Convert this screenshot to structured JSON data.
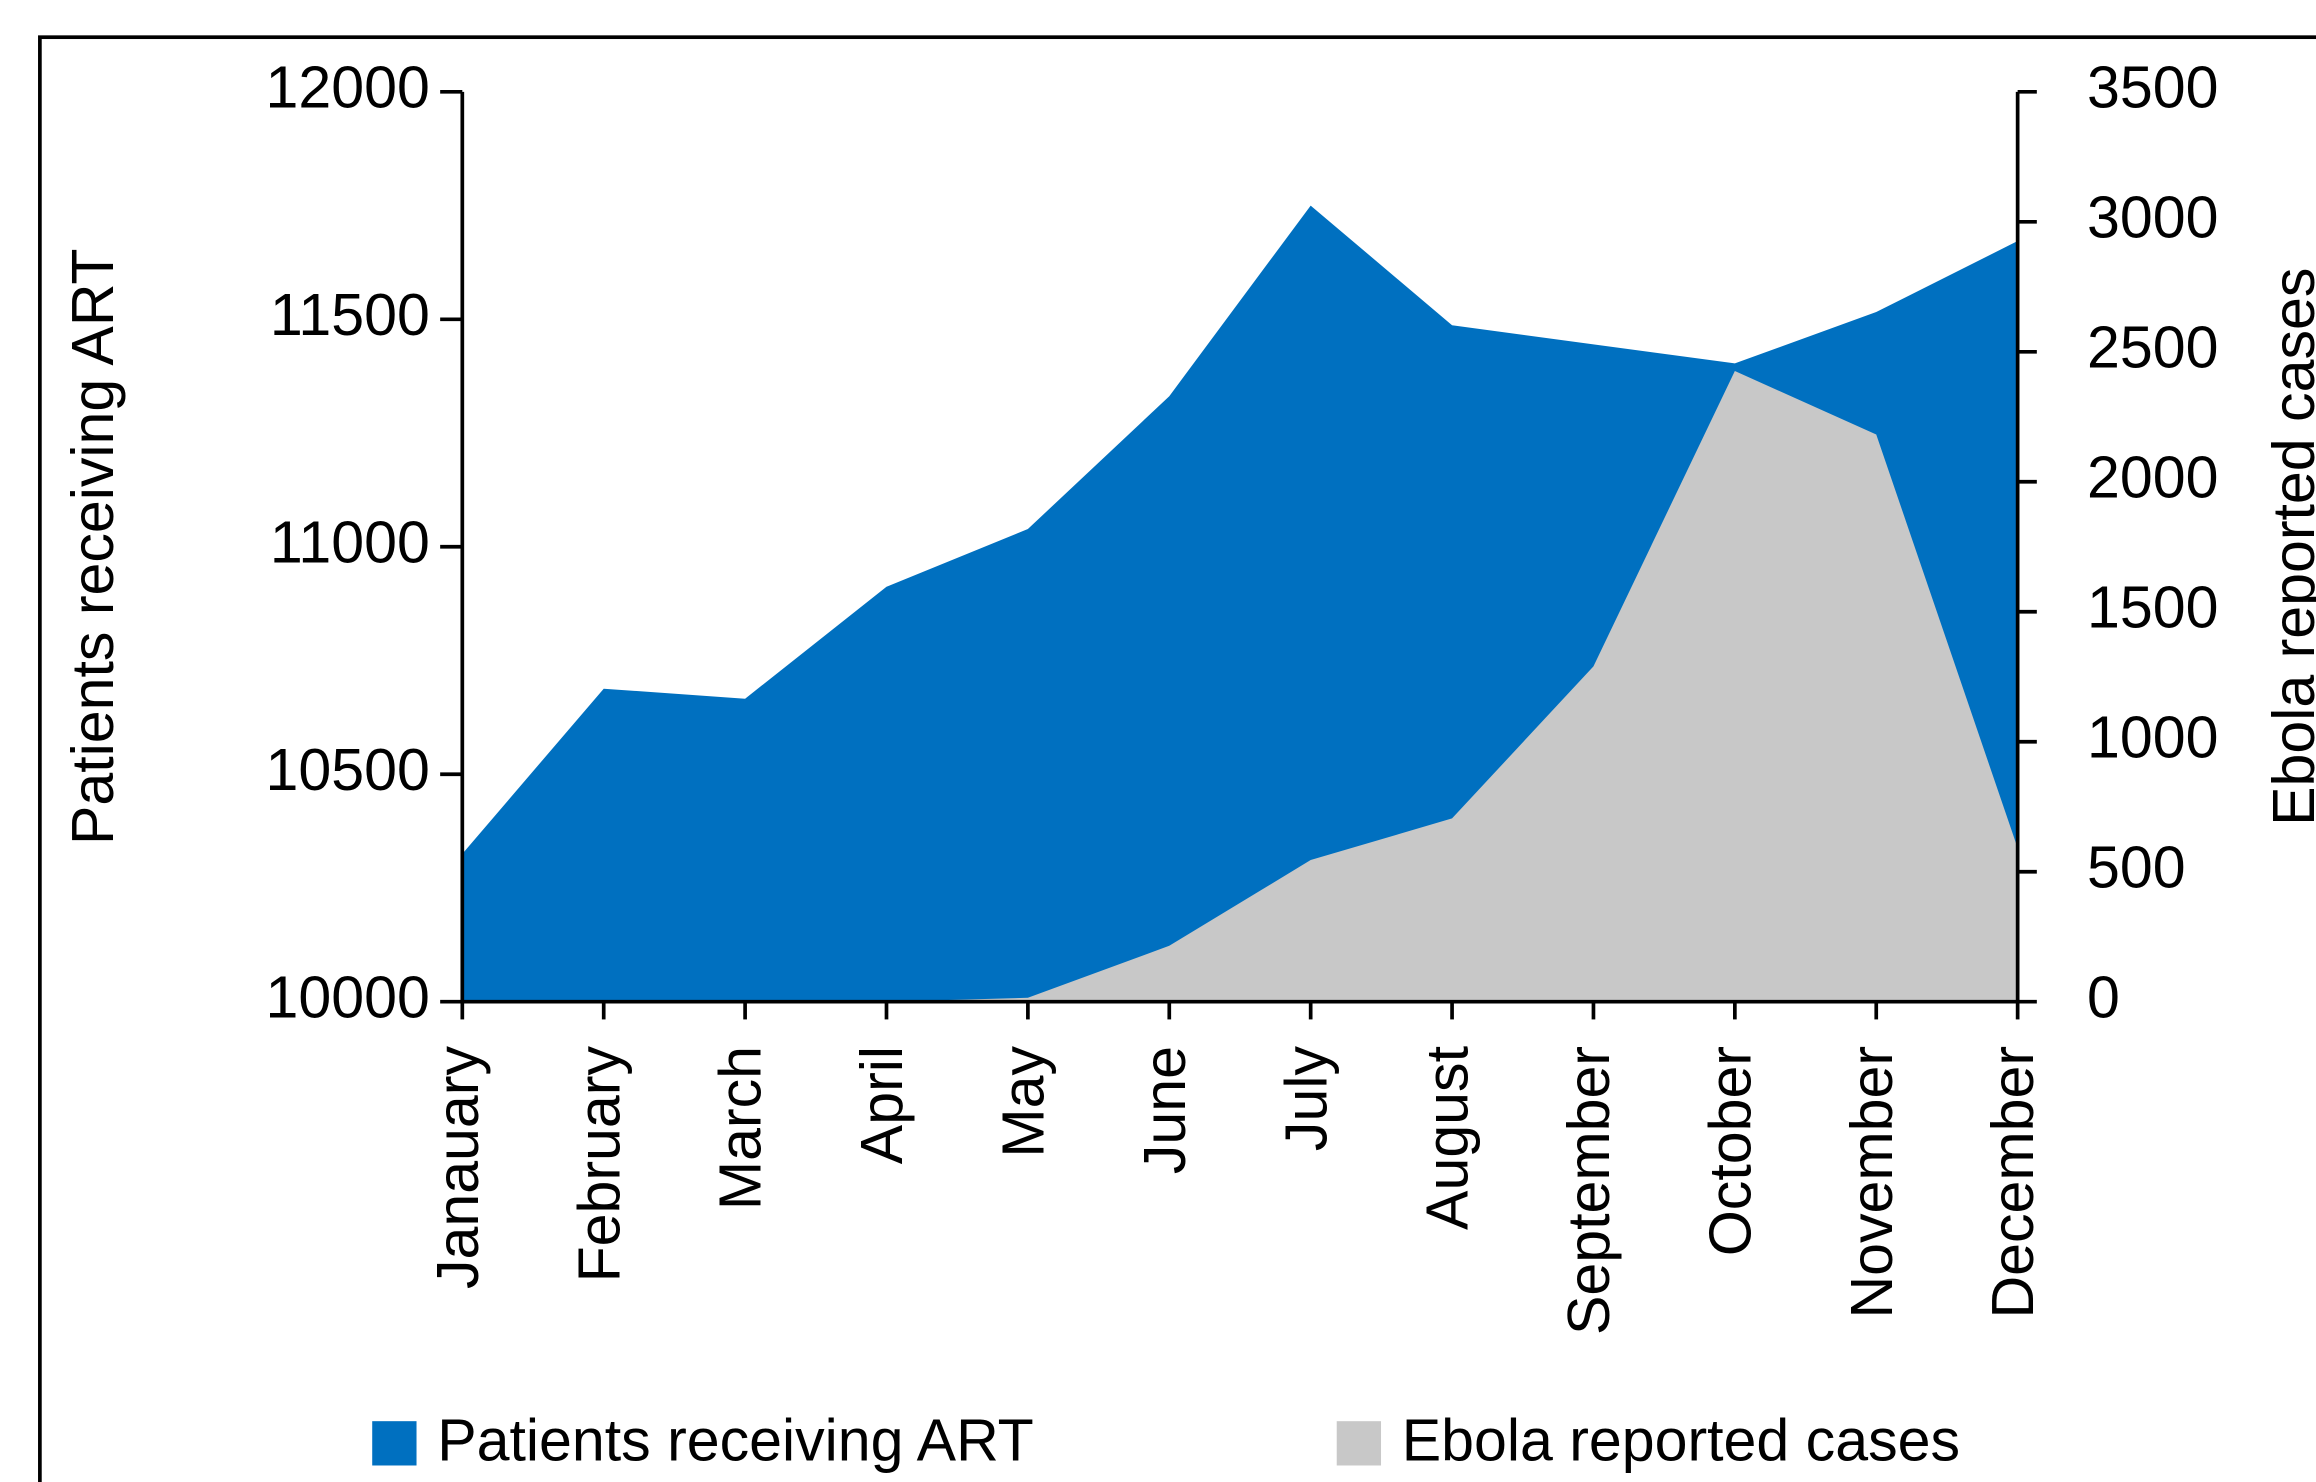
{
  "chart_data": {
    "type": "area",
    "categories": [
      "Janauary",
      "February",
      "March",
      "April",
      "May",
      "June",
      "July",
      "August",
      "September",
      "October",
      "November",
      "December"
    ],
    "series": [
      {
        "name": "Patients receiving ART",
        "color": "#0070c0",
        "values": [
          10325,
          10688,
          10666,
          10912,
          11039,
          11331,
          11750,
          11487,
          11445,
          11403,
          11516,
          11672
        ]
      },
      {
        "name": "Ebola reported cases",
        "color": "#c8c8c8",
        "axis": "y2",
        "values": [
          0,
          0,
          0,
          0,
          15,
          215,
          545,
          705,
          1290,
          2426,
          2182,
          591
        ]
      }
    ],
    "y_label": "Patients receiving ART",
    "y2_label": "Ebola reported cases",
    "ylim": [
      10000,
      12000
    ],
    "yticks": [
      10000,
      10500,
      11000,
      11500,
      12000
    ],
    "y2lim": [
      0,
      3500
    ],
    "y2ticks": [
      0,
      500,
      1000,
      1500,
      2000,
      2500,
      3000,
      3500
    ],
    "legend": "bottom"
  }
}
